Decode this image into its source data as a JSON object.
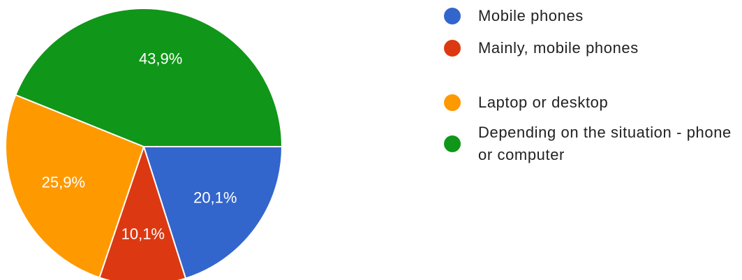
{
  "chart_data": {
    "type": "pie",
    "categories": [
      "Mobile phones",
      "Mainly, mobile phones",
      "Laptop or desktop",
      "Depending on the situation - phone or computer"
    ],
    "values": [
      20.1,
      10.1,
      25.9,
      43.9
    ],
    "value_labels": [
      "20,1%",
      "10,1%",
      "25,9%",
      "43,9%"
    ],
    "colors": [
      "#3366cc",
      "#dc3912",
      "#ff9900",
      "#109618"
    ],
    "legend": "right"
  }
}
